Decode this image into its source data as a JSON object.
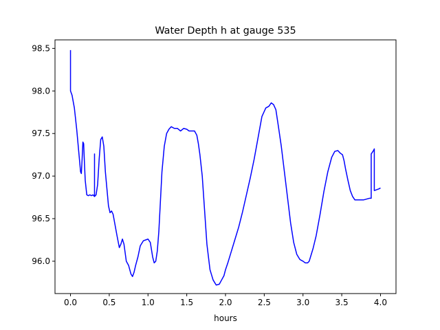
{
  "chart_data": {
    "type": "line",
    "title": "Water Depth h at gauge 535",
    "xlabel": "hours",
    "ylabel": "",
    "xlim": [
      -0.2,
      4.2
    ],
    "ylim": [
      95.62,
      98.6
    ],
    "grid": false,
    "x_ticks": [
      0.0,
      0.5,
      1.0,
      1.5,
      2.0,
      2.5,
      3.0,
      3.5,
      4.0
    ],
    "x_tick_labels": [
      "0.0",
      "0.5",
      "1.0",
      "1.5",
      "2.0",
      "2.5",
      "3.0",
      "3.5",
      "4.0"
    ],
    "y_ticks": [
      96.0,
      96.5,
      97.0,
      97.5,
      98.0,
      98.5
    ],
    "y_tick_labels": [
      "96.0",
      "96.5",
      "97.0",
      "97.5",
      "98.0",
      "98.5"
    ],
    "series": [
      {
        "color": "#0000ff",
        "x": [
          0.0,
          0.0,
          0.0,
          0.02,
          0.05,
          0.08,
          0.11,
          0.13,
          0.14,
          0.15,
          0.16,
          0.17,
          0.18,
          0.19,
          0.21,
          0.23,
          0.25,
          0.27,
          0.29,
          0.31,
          0.31,
          0.31,
          0.31,
          0.33,
          0.35,
          0.37,
          0.39,
          0.41,
          0.43,
          0.45,
          0.47,
          0.49,
          0.51,
          0.53,
          0.55,
          0.57,
          0.6,
          0.63,
          0.65,
          0.67,
          0.69,
          0.72,
          0.75,
          0.78,
          0.8,
          0.82,
          0.84,
          0.87,
          0.9,
          0.94,
          0.97,
          1.0,
          1.03,
          1.06,
          1.08,
          1.1,
          1.12,
          1.14,
          1.16,
          1.18,
          1.21,
          1.24,
          1.27,
          1.3,
          1.34,
          1.38,
          1.42,
          1.46,
          1.5,
          1.53,
          1.56,
          1.6,
          1.63,
          1.65,
          1.67,
          1.7,
          1.73,
          1.76,
          1.8,
          1.84,
          1.88,
          1.92,
          1.95,
          1.98,
          2.0,
          2.03,
          2.07,
          2.12,
          2.17,
          2.22,
          2.27,
          2.32,
          2.37,
          2.42,
          2.47,
          2.52,
          2.56,
          2.59,
          2.62,
          2.65,
          2.68,
          2.72,
          2.76,
          2.8,
          2.84,
          2.88,
          2.92,
          2.96,
          3.0,
          3.03,
          3.06,
          3.08,
          3.1,
          3.13,
          3.17,
          3.22,
          3.27,
          3.32,
          3.37,
          3.41,
          3.45,
          3.48,
          3.51,
          3.53,
          3.55,
          3.58,
          3.61,
          3.64,
          3.67,
          3.7,
          3.74,
          3.78,
          3.82,
          3.86,
          3.88,
          3.88,
          3.91,
          3.92,
          3.92,
          3.95,
          3.98,
          4.0
        ],
        "y": [
          98.48,
          98.0,
          98.0,
          97.95,
          97.8,
          97.55,
          97.25,
          97.05,
          97.03,
          97.2,
          97.4,
          97.38,
          97.15,
          96.95,
          96.78,
          96.77,
          96.78,
          96.77,
          96.78,
          96.76,
          97.26,
          97.26,
          96.76,
          96.78,
          96.9,
          97.2,
          97.43,
          97.46,
          97.35,
          97.05,
          96.85,
          96.65,
          96.57,
          96.59,
          96.55,
          96.45,
          96.3,
          96.16,
          96.2,
          96.26,
          96.2,
          96.0,
          95.95,
          95.85,
          95.82,
          95.87,
          95.95,
          96.05,
          96.18,
          96.24,
          96.25,
          96.26,
          96.22,
          96.05,
          95.98,
          96.0,
          96.12,
          96.35,
          96.7,
          97.05,
          97.35,
          97.5,
          97.55,
          97.58,
          97.56,
          97.56,
          97.53,
          97.56,
          97.55,
          97.53,
          97.53,
          97.53,
          97.48,
          97.38,
          97.25,
          97.0,
          96.6,
          96.2,
          95.9,
          95.78,
          95.72,
          95.73,
          95.78,
          95.83,
          95.9,
          95.98,
          96.1,
          96.25,
          96.4,
          96.58,
          96.78,
          96.98,
          97.2,
          97.45,
          97.7,
          97.8,
          97.82,
          97.86,
          97.84,
          97.78,
          97.6,
          97.35,
          97.05,
          96.75,
          96.45,
          96.22,
          96.08,
          96.02,
          96.0,
          95.98,
          95.98,
          96.0,
          96.06,
          96.15,
          96.3,
          96.55,
          96.82,
          97.05,
          97.22,
          97.29,
          97.3,
          97.27,
          97.25,
          97.18,
          97.08,
          96.95,
          96.83,
          96.76,
          96.72,
          96.72,
          96.72,
          96.72,
          96.73,
          96.74,
          96.74,
          97.26,
          97.3,
          97.32,
          96.83,
          96.84,
          96.85,
          96.86
        ]
      }
    ]
  }
}
